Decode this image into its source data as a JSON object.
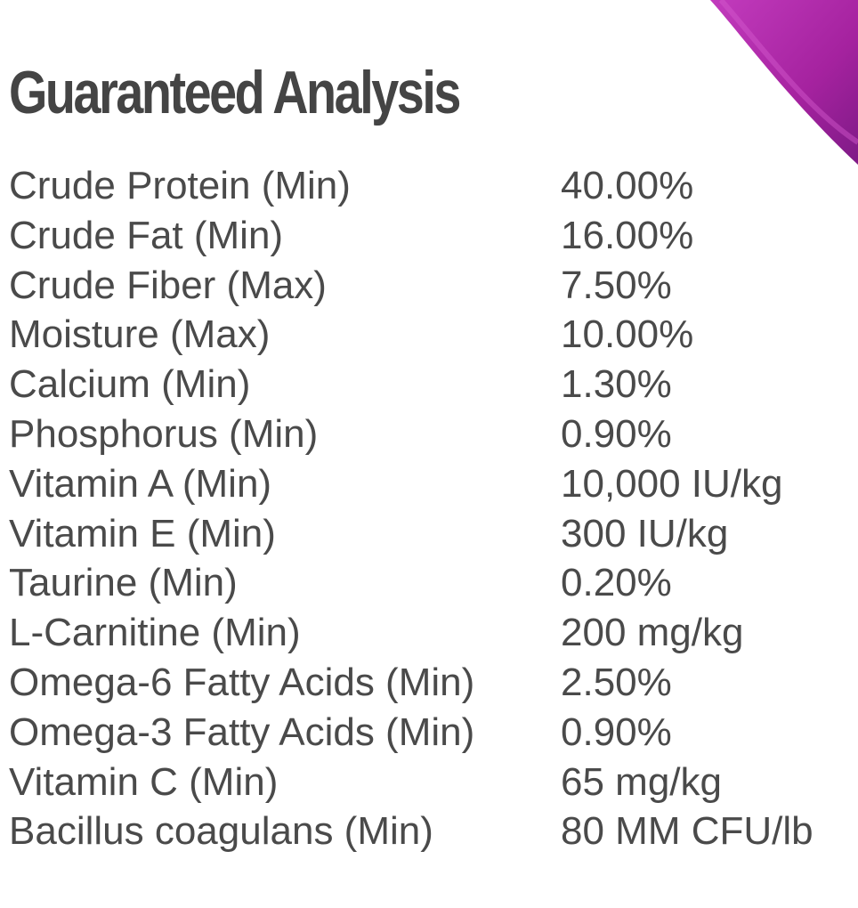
{
  "title": "Guaranteed Analysis",
  "accent_color": "#b02aa8",
  "rows": [
    {
      "label": "Crude Protein (Min)",
      "value": "40.00%"
    },
    {
      "label": "Crude Fat (Min)",
      "value": "16.00%"
    },
    {
      "label": "Crude Fiber (Max)",
      "value": "7.50%"
    },
    {
      "label": "Moisture (Max)",
      "value": "10.00%"
    },
    {
      "label": "Calcium (Min)",
      "value": "1.30%"
    },
    {
      "label": "Phosphorus (Min)",
      "value": "0.90%"
    },
    {
      "label": "Vitamin A (Min)",
      "value": "10,000 IU/kg"
    },
    {
      "label": "Vitamin E (Min)",
      "value": "300 IU/kg"
    },
    {
      "label": "Taurine (Min)",
      "value": "0.20%"
    },
    {
      "label": "L-Carnitine (Min)",
      "value": "200 mg/kg"
    },
    {
      "label": "Omega-6 Fatty Acids (Min)",
      "value": "2.50%"
    },
    {
      "label": "Omega-3 Fatty Acids (Min)",
      "value": "0.90%"
    },
    {
      "label": "Vitamin C (Min)",
      "value": "65 mg/kg"
    },
    {
      "label": "Bacillus coagulans (Min)",
      "value": "80 MM CFU/lb"
    }
  ]
}
